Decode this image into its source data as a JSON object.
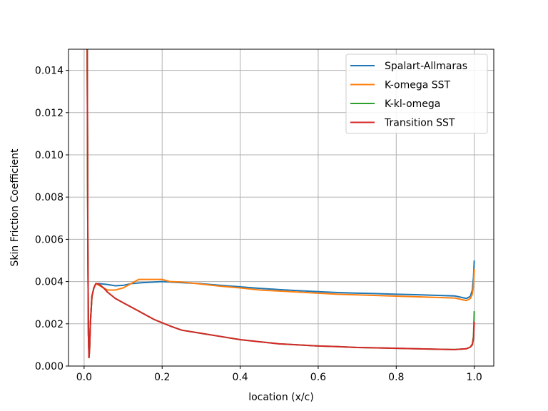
{
  "chart_data": {
    "type": "line",
    "title": "",
    "xlabel": "location (x/c)",
    "ylabel": "Skin Friction Coefficient",
    "xlim": [
      -0.04,
      1.05
    ],
    "ylim": [
      0.0,
      0.015
    ],
    "xticks": [
      0.0,
      0.2,
      0.4,
      0.6,
      0.8,
      1.0
    ],
    "xtick_labels": [
      "0.0",
      "0.2",
      "0.4",
      "0.6",
      "0.8",
      "1.0"
    ],
    "yticks": [
      0.0,
      0.002,
      0.004,
      0.006,
      0.008,
      0.01,
      0.012,
      0.014
    ],
    "ytick_labels": [
      "0.000",
      "0.002",
      "0.004",
      "0.006",
      "0.008",
      "0.010",
      "0.012",
      "0.014"
    ],
    "grid": true,
    "legend_position": "top-right",
    "series": [
      {
        "name": "Spalart-Allmaras",
        "color": "#1f77b4",
        "x": [
          0.008,
          0.0095,
          0.011,
          0.0125,
          0.014,
          0.016,
          0.02,
          0.025,
          0.03,
          0.04,
          0.05,
          0.06,
          0.08,
          0.1,
          0.12,
          0.15,
          0.2,
          0.25,
          0.3,
          0.35,
          0.4,
          0.45,
          0.5,
          0.55,
          0.6,
          0.65,
          0.7,
          0.75,
          0.8,
          0.85,
          0.9,
          0.95,
          0.98,
          0.99,
          0.995,
          0.998,
          1.0
        ],
        "y": [
          0.015,
          0.006,
          0.0015,
          0.0004,
          0.0008,
          0.002,
          0.0033,
          0.0037,
          0.0039,
          0.0039,
          0.00388,
          0.00386,
          0.0038,
          0.00382,
          0.0039,
          0.00395,
          0.004,
          0.00395,
          0.0039,
          0.00382,
          0.00375,
          0.00368,
          0.00362,
          0.00357,
          0.00352,
          0.00348,
          0.00345,
          0.00343,
          0.0034,
          0.00338,
          0.00335,
          0.00332,
          0.0032,
          0.0033,
          0.0036,
          0.0042,
          0.005
        ]
      },
      {
        "name": "K-omega SST",
        "color": "#ff7f0e",
        "x": [
          0.008,
          0.0095,
          0.011,
          0.0125,
          0.014,
          0.016,
          0.02,
          0.025,
          0.03,
          0.04,
          0.05,
          0.06,
          0.08,
          0.1,
          0.12,
          0.14,
          0.16,
          0.18,
          0.2,
          0.22,
          0.25,
          0.3,
          0.35,
          0.4,
          0.45,
          0.5,
          0.55,
          0.6,
          0.65,
          0.7,
          0.75,
          0.8,
          0.85,
          0.9,
          0.95,
          0.98,
          0.99,
          0.995,
          0.998,
          1.0
        ],
        "y": [
          0.015,
          0.006,
          0.0015,
          0.0004,
          0.0008,
          0.002,
          0.0033,
          0.0037,
          0.0039,
          0.0038,
          0.0037,
          0.0036,
          0.0036,
          0.0037,
          0.0039,
          0.0041,
          0.0041,
          0.0041,
          0.0041,
          0.004,
          0.00398,
          0.00388,
          0.00378,
          0.0037,
          0.0036,
          0.00355,
          0.0035,
          0.00345,
          0.0034,
          0.00337,
          0.00334,
          0.00331,
          0.00328,
          0.00325,
          0.00322,
          0.0031,
          0.0032,
          0.0034,
          0.0038,
          0.0046
        ]
      },
      {
        "name": "K-kl-omega",
        "color": "#2ca02c",
        "x": [
          0.008,
          0.0095,
          0.011,
          0.0125,
          0.014,
          0.016,
          0.02,
          0.025,
          0.03,
          0.035,
          0.04,
          0.05,
          0.06,
          0.08,
          0.1,
          0.12,
          0.14,
          0.16,
          0.18,
          0.2,
          0.22,
          0.25,
          0.3,
          0.35,
          0.4,
          0.45,
          0.5,
          0.55,
          0.6,
          0.65,
          0.7,
          0.75,
          0.8,
          0.85,
          0.9,
          0.95,
          0.98,
          0.99,
          0.995,
          0.998,
          1.0
        ],
        "y": [
          0.015,
          0.006,
          0.0015,
          0.0004,
          0.0008,
          0.002,
          0.0033,
          0.0037,
          0.0039,
          0.0039,
          0.00385,
          0.0037,
          0.0035,
          0.0032,
          0.003,
          0.0028,
          0.0026,
          0.0024,
          0.0022,
          0.00205,
          0.0019,
          0.0017,
          0.00155,
          0.0014,
          0.00125,
          0.00115,
          0.00105,
          0.001,
          0.00095,
          0.00092,
          0.00088,
          0.00086,
          0.00084,
          0.00082,
          0.0008,
          0.00078,
          0.00082,
          0.0009,
          0.00105,
          0.0014,
          0.0026
        ]
      },
      {
        "name": "Transition SST",
        "color": "#d62728",
        "x": [
          0.008,
          0.0095,
          0.011,
          0.0125,
          0.014,
          0.016,
          0.02,
          0.025,
          0.03,
          0.035,
          0.04,
          0.05,
          0.06,
          0.08,
          0.1,
          0.12,
          0.14,
          0.16,
          0.18,
          0.2,
          0.22,
          0.25,
          0.3,
          0.35,
          0.4,
          0.45,
          0.5,
          0.55,
          0.6,
          0.65,
          0.7,
          0.75,
          0.8,
          0.85,
          0.9,
          0.95,
          0.98,
          0.99,
          0.995,
          0.998,
          1.0
        ],
        "y": [
          0.015,
          0.006,
          0.0015,
          0.0004,
          0.0008,
          0.002,
          0.0033,
          0.0037,
          0.0039,
          0.0039,
          0.00385,
          0.0037,
          0.0035,
          0.0032,
          0.003,
          0.0028,
          0.0026,
          0.0024,
          0.0022,
          0.00205,
          0.0019,
          0.0017,
          0.00155,
          0.0014,
          0.00125,
          0.00115,
          0.00105,
          0.001,
          0.00095,
          0.00092,
          0.00088,
          0.00086,
          0.00084,
          0.00082,
          0.0008,
          0.00078,
          0.00082,
          0.0009,
          0.001,
          0.0013,
          0.0021
        ]
      }
    ]
  }
}
